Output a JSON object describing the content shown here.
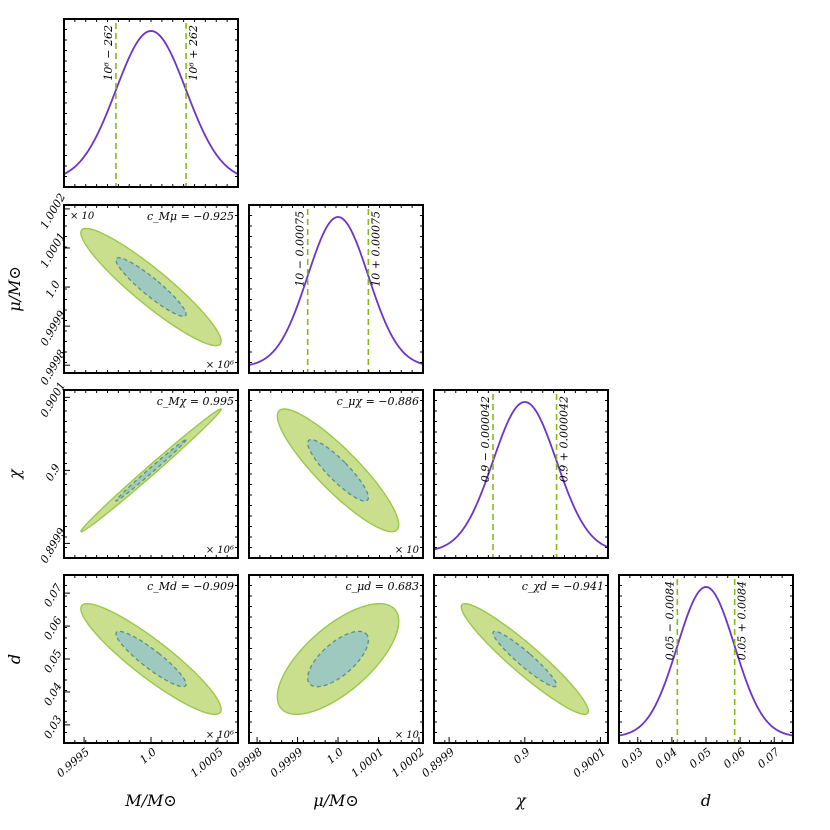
{
  "colors": {
    "curve": "#6a35c9",
    "sigma_line": "#8ab817",
    "outer_fill": "#c9df8e",
    "outer_stroke": "#99c84a",
    "inner_fill": "#9ec9bf",
    "inner_stroke": "#5b8f88"
  },
  "chart_data": {
    "type": "corner",
    "parameters": [
      {
        "key": "M",
        "label": "M/M⊙",
        "ticks": [
          "0.9995",
          "1.0",
          "1.0005"
        ],
        "tick_values": [
          0.9995,
          1.0,
          1.0005
        ],
        "range": [
          0.99935,
          1.00065
        ],
        "offset_text": "× 10⁶"
      },
      {
        "key": "mu",
        "label": "μ/M⊙",
        "ticks": [
          "0.9998",
          "0.9999",
          "1.0",
          "1.0001",
          "1.0002"
        ],
        "tick_values": [
          0.9998,
          0.9999,
          1.0,
          1.0001,
          1.0002
        ],
        "range": [
          0.99978,
          1.00021
        ],
        "offset_text": "× 10"
      },
      {
        "key": "chi",
        "label": "χ",
        "ticks": [
          "0.8999",
          "0.9",
          "0.9001"
        ],
        "tick_values": [
          0.8999,
          0.9,
          0.9001
        ],
        "range": [
          0.89988,
          0.90011
        ],
        "offset_text": ""
      },
      {
        "key": "d",
        "label": "d",
        "ticks": [
          "0.03",
          "0.04",
          "0.05",
          "0.06",
          "0.07"
        ],
        "tick_values": [
          0.03,
          0.04,
          0.05,
          0.06,
          0.07
        ],
        "range": [
          0.0245,
          0.0755
        ],
        "offset_text": ""
      }
    ],
    "marginals": [
      {
        "mean": 1.0,
        "sigma": 0.000262,
        "lower_label": "10⁶ − 262",
        "upper_label": "10⁶ + 262"
      },
      {
        "mean": 1.0,
        "sigma": 7.5e-05,
        "lower_label": "10 − 0.00075",
        "upper_label": "10 + 0.00075"
      },
      {
        "mean": 0.9,
        "sigma": 4.2e-05,
        "lower_label": "0.9 − 0.000042",
        "upper_label": "0.9 + 0.000042"
      },
      {
        "mean": 0.05,
        "sigma": 0.0084,
        "lower_label": "0.05 − 0.0084",
        "upper_label": "0.05 + 0.0084"
      }
    ],
    "correlations": [
      {
        "row": 1,
        "col": 0,
        "label": "c_Mμ = −0.925",
        "value": -0.925
      },
      {
        "row": 2,
        "col": 0,
        "label": "c_Mχ = 0.995",
        "value": 0.995
      },
      {
        "row": 2,
        "col": 1,
        "label": "c_μχ = −0.886",
        "value": -0.886
      },
      {
        "row": 3,
        "col": 0,
        "label": "c_Md = −0.909",
        "value": -0.909
      },
      {
        "row": 3,
        "col": 1,
        "label": "c_μd = 0.683",
        "value": 0.683
      },
      {
        "row": 3,
        "col": 2,
        "label": "c_χd = −0.941",
        "value": -0.941
      }
    ],
    "contour_levels_sigma": [
      1,
      2
    ]
  }
}
